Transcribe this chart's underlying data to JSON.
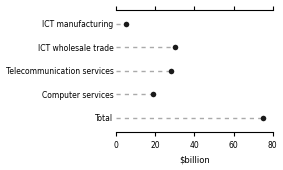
{
  "categories": [
    "ICT manufacturing",
    "ICT wholesale trade",
    "Telecommunication services",
    "Computer services",
    "Total"
  ],
  "values": [
    5,
    30,
    28,
    19,
    75
  ],
  "xlabel": "$billion",
  "xlim": [
    0,
    80
  ],
  "xticks": [
    0,
    20,
    40,
    60,
    80
  ],
  "marker_color": "#1a1a1a",
  "line_color": "#aaaaaa",
  "marker_size": 4,
  "line_width": 1.0,
  "background_color": "#ffffff",
  "font_size": 5.5,
  "xlabel_fontsize": 6.0
}
